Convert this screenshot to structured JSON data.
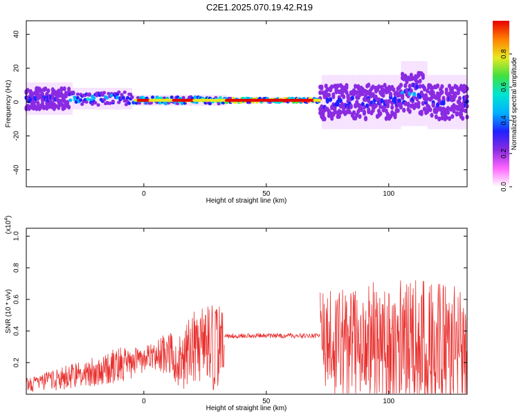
{
  "title": "C2E1.2025.070.19.42.R19",
  "chart_data": [
    {
      "type": "heatmap",
      "xlabel": "Height of straight line (km)",
      "ylabel": "Frequency (Hz)",
      "xlim": [
        -48,
        132
      ],
      "ylim": [
        -50,
        48
      ],
      "x_ticks": [
        "0",
        "50",
        "100"
      ],
      "y_ticks": [
        "40",
        "20",
        "0",
        "-20",
        "-40"
      ],
      "colorbar": {
        "label": "Normalized spectral amplitude",
        "range": [
          0,
          1
        ],
        "ticks": [
          "0.0",
          "0.2",
          "0.4",
          "0.6",
          "0.8"
        ]
      }
    },
    {
      "type": "line",
      "xlabel": "Height of straight line (km)",
      "ylabel": "SNR (10 * v/v)",
      "scale_label": "(x10",
      "scale_exp": "4",
      "scale_close": ")",
      "xlim": [
        -48,
        132
      ],
      "ylim": [
        0,
        1.05
      ],
      "x_ticks": [
        "0",
        "50",
        "100"
      ],
      "y_ticks": [
        "0.2",
        "0.4",
        "0.6",
        "0.8",
        "1.0"
      ],
      "series": [
        {
          "color": "#e8302e",
          "segments": [
            {
              "x": [
                -48,
                -40,
                -30,
                -20,
                -10,
                0,
                5,
                10,
                15,
                20,
                25,
                30,
                33
              ],
              "y_mean": [
                0.06,
                0.08,
                0.11,
                0.15,
                0.18,
                0.22,
                0.24,
                0.26,
                0.2,
                0.28,
                0.3,
                0.3,
                0.3
              ],
              "y_spread": [
                0.05,
                0.06,
                0.08,
                0.1,
                0.12,
                0.08,
                0.1,
                0.14,
                0.18,
                0.24,
                0.26,
                0.28,
                0.22
              ]
            },
            {
              "x": [
                33,
                40,
                50,
                60,
                72
              ],
              "y_mean": [
                0.37,
                0.37,
                0.37,
                0.37,
                0.37
              ],
              "y_spread": [
                0.015,
                0.015,
                0.015,
                0.015,
                0.015
              ]
            },
            {
              "x": [
                72,
                80,
                90,
                100,
                110,
                120,
                132
              ],
              "y_mean": [
                0.35,
                0.33,
                0.32,
                0.3,
                0.32,
                0.3,
                0.3
              ],
              "y_spread": [
                0.3,
                0.35,
                0.4,
                0.4,
                0.45,
                0.4,
                0.4
              ]
            }
          ]
        }
      ]
    }
  ],
  "colors": {
    "line": "#e8302e",
    "colormap": [
      "#ffffff",
      "#ff66ff",
      "#8a2be2",
      "#2020ff",
      "#00b0ff",
      "#00e5d0",
      "#40e040",
      "#e8e820",
      "#ff8000",
      "#e80000"
    ]
  }
}
